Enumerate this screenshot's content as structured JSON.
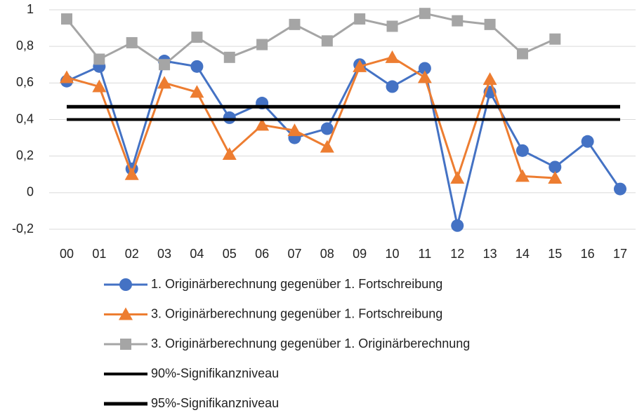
{
  "chart_data": {
    "type": "line",
    "categories": [
      "00",
      "01",
      "02",
      "03",
      "04",
      "05",
      "06",
      "07",
      "08",
      "09",
      "10",
      "11",
      "12",
      "13",
      "14",
      "15",
      "16",
      "17"
    ],
    "ylim": [
      -0.2,
      1
    ],
    "yticks": [
      {
        "value": -0.2,
        "label": "-0,2"
      },
      0,
      {
        "value": 0.2,
        "label": "0,2"
      },
      {
        "value": 0.4,
        "label": "0,4"
      },
      {
        "value": 0.6,
        "label": "0,6"
      },
      {
        "value": 0.8,
        "label": "0,8"
      },
      1
    ],
    "grid": true,
    "legend": "bottom",
    "series": [
      {
        "name": "1. Originärberechnung gegenüber 1. Fortschreibung",
        "color": "#4472c4",
        "marker": "circle",
        "line_width": 3,
        "values": [
          0.61,
          0.69,
          0.13,
          0.72,
          0.69,
          0.41,
          0.49,
          0.3,
          0.35,
          0.7,
          0.58,
          0.68,
          -0.18,
          0.55,
          0.23,
          0.14,
          0.28,
          0.02
        ]
      },
      {
        "name": "3. Originärberechnung gegenüber 1. Fortschreibung",
        "color": "#ed7d31",
        "marker": "triangle",
        "line_width": 3,
        "values": [
          0.63,
          0.58,
          0.1,
          0.6,
          0.55,
          0.21,
          0.37,
          0.34,
          0.25,
          0.69,
          0.74,
          0.63,
          0.08,
          0.62,
          0.09,
          0.08,
          null,
          null
        ]
      },
      {
        "name": "3. Originärberechnung gegenüber 1. Originärberechnung",
        "color": "#a5a5a5",
        "marker": "square",
        "line_width": 3,
        "values": [
          0.95,
          0.73,
          0.82,
          0.7,
          0.85,
          0.74,
          0.81,
          0.92,
          0.83,
          0.95,
          0.91,
          0.98,
          0.94,
          0.92,
          0.76,
          0.84,
          null,
          null
        ]
      },
      {
        "name": "90%-Signifikanzniveau",
        "color": "#000000",
        "marker": "none",
        "line_width": 4,
        "values": [
          0.4,
          0.4,
          0.4,
          0.4,
          0.4,
          0.4,
          0.4,
          0.4,
          0.4,
          0.4,
          0.4,
          0.4,
          0.4,
          0.4,
          0.4,
          0.4,
          0.4,
          0.4
        ]
      },
      {
        "name": "95%-Signifikanzniveau",
        "color": "#000000",
        "marker": "none",
        "line_width": 5,
        "values": [
          0.47,
          0.47,
          0.47,
          0.47,
          0.47,
          0.47,
          0.47,
          0.47,
          0.47,
          0.47,
          0.47,
          0.47,
          0.47,
          0.47,
          0.47,
          0.47,
          0.47,
          0.47
        ]
      }
    ]
  }
}
